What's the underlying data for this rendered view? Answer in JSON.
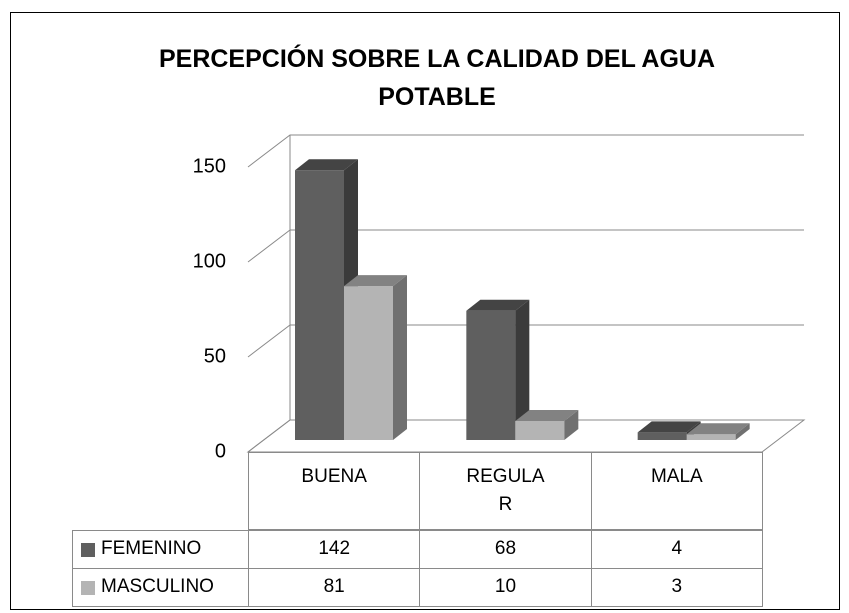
{
  "chart_data": {
    "type": "bar3d",
    "title": "PERCEPCIÓN SOBRE LA CALIDAD DEL AGUA POTABLE",
    "categories": [
      "BUENA",
      "REGULAR",
      "MALA"
    ],
    "series": [
      {
        "name": "FEMENINO",
        "color": "#5f5f5f",
        "values": [
          142,
          68,
          4
        ]
      },
      {
        "name": "MASCULINO",
        "color": "#b4b4b4",
        "values": [
          81,
          10,
          3
        ]
      }
    ],
    "ylim": [
      0,
      150
    ],
    "yticks": [
      0,
      50,
      100,
      150
    ],
    "grid": true,
    "data_table": true
  }
}
